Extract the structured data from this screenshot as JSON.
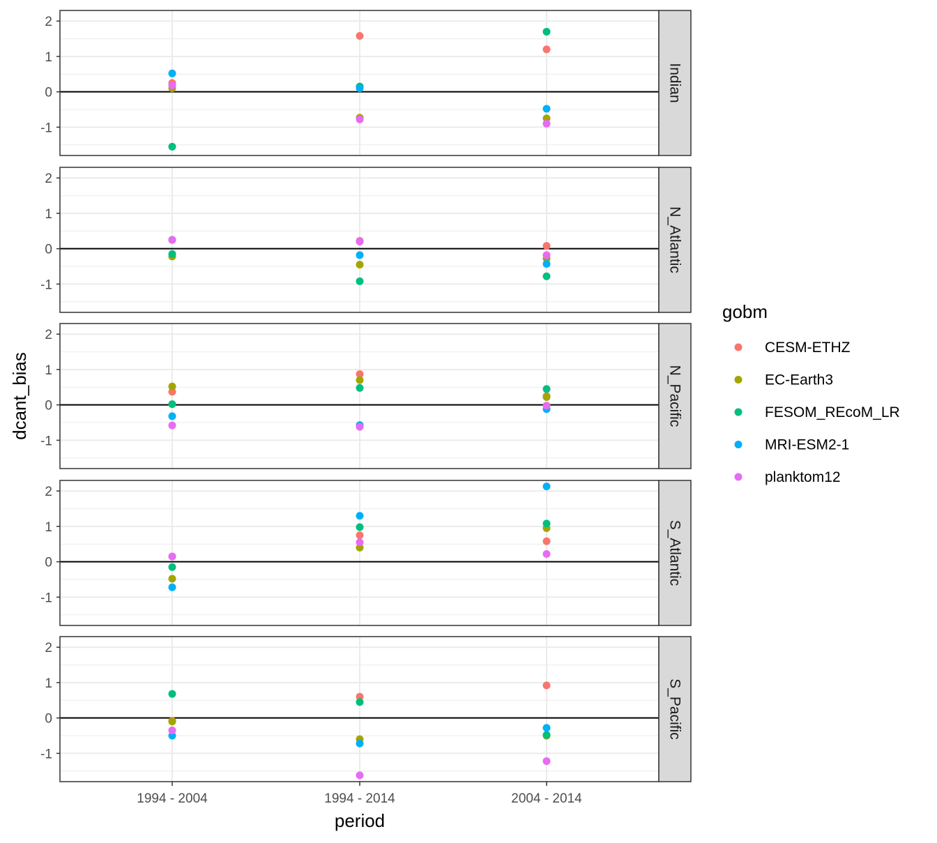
{
  "chart_data": {
    "type": "scatter",
    "facet_by": "basin",
    "panels": [
      "Indian",
      "N_Atlantic",
      "N_Pacific",
      "S_Atlantic",
      "S_Pacific"
    ],
    "categories": [
      "1994 - 2004",
      "1994 - 2014",
      "2004 - 2014"
    ],
    "xlabel": "period",
    "ylabel": "dcant_bias",
    "ylim": [
      -1.8,
      2.3
    ],
    "yticks": [
      2,
      1,
      0,
      -1
    ],
    "ytick_labels": [
      "2",
      "1",
      "0",
      "-1"
    ],
    "reference_line": 0,
    "grid": true,
    "legend": {
      "title": "gobm",
      "position": "right",
      "entries": [
        {
          "name": "CESM-ETHZ",
          "color": "#F8766D"
        },
        {
          "name": "EC-Earth3",
          "color": "#A3A500"
        },
        {
          "name": "FESOM_REcoM_LR",
          "color": "#00BF7D"
        },
        {
          "name": "MRI-ESM2-1",
          "color": "#00B0F6"
        },
        {
          "name": "planktom12",
          "color": "#E76BF3"
        }
      ]
    },
    "series": [
      {
        "name": "CESM-ETHZ",
        "values": {
          "Indian": [
            0.25,
            1.58,
            1.2
          ],
          "N_Atlantic": [
            0.25,
            0.22,
            0.08
          ],
          "N_Pacific": [
            0.37,
            0.87,
            0.25
          ],
          "S_Atlantic": [
            0.15,
            0.75,
            0.58
          ],
          "S_Pacific": [
            -0.08,
            0.6,
            0.92
          ]
        }
      },
      {
        "name": "EC-Earth3",
        "values": {
          "Indian": [
            0.1,
            -0.73,
            -0.75
          ],
          "N_Atlantic": [
            -0.22,
            -0.45,
            -0.28
          ],
          "N_Pacific": [
            0.52,
            0.7,
            0.22
          ],
          "S_Atlantic": [
            -0.48,
            0.4,
            0.95
          ],
          "S_Pacific": [
            -0.1,
            -0.6,
            -0.5
          ]
        }
      },
      {
        "name": "FESOM_REcoM_LR",
        "values": {
          "Indian": [
            -1.55,
            0.15,
            1.7
          ],
          "N_Atlantic": [
            -0.15,
            -0.92,
            -0.78
          ],
          "N_Pacific": [
            0.02,
            0.48,
            0.45
          ],
          "S_Atlantic": [
            -0.15,
            0.98,
            1.08
          ],
          "S_Pacific": [
            0.68,
            0.45,
            -0.48
          ]
        }
      },
      {
        "name": "MRI-ESM2-1",
        "values": {
          "Indian": [
            0.52,
            0.1,
            -0.48
          ],
          "N_Atlantic": [
            0.25,
            -0.18,
            -0.43
          ],
          "N_Pacific": [
            -0.32,
            -0.57,
            -0.12
          ],
          "S_Atlantic": [
            -0.72,
            1.3,
            2.13
          ],
          "S_Pacific": [
            -0.5,
            -0.72,
            -0.28
          ]
        }
      },
      {
        "name": "planktom12",
        "values": {
          "Indian": [
            0.18,
            -0.78,
            -0.9
          ],
          "N_Atlantic": [
            0.25,
            0.2,
            -0.18
          ],
          "N_Pacific": [
            -0.58,
            -0.62,
            -0.02
          ],
          "S_Atlantic": [
            0.15,
            0.55,
            0.22
          ],
          "S_Pacific": [
            -0.35,
            -1.62,
            -1.22
          ]
        }
      }
    ]
  }
}
